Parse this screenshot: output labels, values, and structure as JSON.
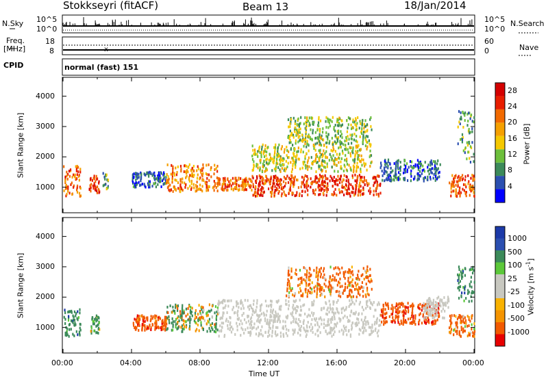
{
  "header": {
    "station": "Stokkseyri (fitACF)",
    "beam": "Beam 13",
    "date": "18/Jan/2014"
  },
  "top_panels": {
    "nsky_label": "N.Sky",
    "nsky_ticks": [
      "10^5",
      "10^0"
    ],
    "nsearch_label": "N.Search",
    "nsearch_ticks": [
      "10^5",
      "10^0"
    ],
    "freq_label": "Freq.",
    "freq_unit": "[MHz]",
    "freq_ticks": [
      "18",
      "8"
    ],
    "nave_label": "Nave",
    "nave_ticks": [
      "60",
      "0"
    ],
    "cpid_label": "CPID",
    "cpid_value": "normal (fast) 151"
  },
  "colors": {
    "power_scale": [
      "#0000ff",
      "#2b4fb0",
      "#3c8a5a",
      "#6dbf3c",
      "#f5c800",
      "#f5a000",
      "#f26a00",
      "#e81e00",
      "#d40000"
    ],
    "velocity_scale": [
      "#e80000",
      "#f25a00",
      "#f59400",
      "#f9b200",
      "#c8c8c0",
      "#c8c8c0",
      "#5cc83a",
      "#3c8a5a",
      "#2b4fb0",
      "#1c3aa8"
    ],
    "ground_scatter": "#c8c8c0"
  },
  "chart_data": [
    {
      "type": "heatmap",
      "title": "",
      "xlabel": "Time UT",
      "ylabel": "Slant Range [km]",
      "x_ticks": [
        "00:00",
        "04:00",
        "08:00",
        "12:00",
        "16:00",
        "20:00",
        "00:00"
      ],
      "xlim_hours": [
        0,
        24
      ],
      "y_ticks": [
        1000,
        2000,
        3000,
        4000
      ],
      "ylim": [
        180,
        4600
      ],
      "colorbar": {
        "label": "Power [dB]",
        "ticks": [
          4,
          8,
          12,
          16,
          20,
          24,
          28
        ],
        "range": [
          0,
          30
        ]
      },
      "scatter_regions": [
        {
          "t0": 0.0,
          "t1": 1.0,
          "r0": 700,
          "r1": 1700,
          "level": 22
        },
        {
          "t0": 1.5,
          "t1": 2.1,
          "r0": 800,
          "r1": 1400,
          "level": 24
        },
        {
          "t0": 2.3,
          "t1": 2.6,
          "r0": 900,
          "r1": 1600,
          "level": 10
        },
        {
          "t0": 4.0,
          "t1": 6.0,
          "r0": 1000,
          "r1": 1500,
          "level": 6
        },
        {
          "t0": 6.0,
          "t1": 9.0,
          "r0": 850,
          "r1": 1750,
          "level": 20
        },
        {
          "t0": 9.0,
          "t1": 11.0,
          "r0": 900,
          "r1": 1300,
          "level": 22
        },
        {
          "t0": 11.0,
          "t1": 18.5,
          "r0": 700,
          "r1": 1400,
          "level": 24
        },
        {
          "t0": 11.0,
          "t1": 18.0,
          "r0": 1500,
          "r1": 2400,
          "level": 14
        },
        {
          "t0": 13.0,
          "t1": 18.0,
          "r0": 2400,
          "r1": 3300,
          "level": 12
        },
        {
          "t0": 18.5,
          "t1": 22.0,
          "r0": 1200,
          "r1": 1900,
          "level": 6
        },
        {
          "t0": 22.5,
          "t1": 24.0,
          "r0": 700,
          "r1": 1400,
          "level": 22
        },
        {
          "t0": 23.0,
          "t1": 24.0,
          "r0": 1800,
          "r1": 3500,
          "level": 10
        }
      ]
    },
    {
      "type": "heatmap",
      "title": "",
      "xlabel": "Time UT",
      "ylabel": "Slant Range [km]",
      "x_ticks": [
        "00:00",
        "04:00",
        "08:00",
        "12:00",
        "16:00",
        "20:00",
        "00:00"
      ],
      "xlim_hours": [
        0,
        24
      ],
      "y_ticks": [
        1000,
        2000,
        3000,
        4000
      ],
      "ylim": [
        180,
        4600
      ],
      "colorbar": {
        "label": "Velocity [m s",
        "label_superscript": "-1",
        "label_close": "]",
        "ticks": [
          1000,
          500,
          100,
          25,
          -25,
          -100,
          -500,
          -1000
        ]
      },
      "scatter_regions": [
        {
          "t0": 0.0,
          "t1": 1.0,
          "r0": 700,
          "r1": 1600,
          "velocity": 300
        },
        {
          "t0": 1.5,
          "t1": 2.1,
          "r0": 800,
          "r1": 1400,
          "velocity": 200
        },
        {
          "t0": 4.0,
          "t1": 6.0,
          "r0": 900,
          "r1": 1400,
          "velocity": -300
        },
        {
          "t0": 6.0,
          "t1": 9.0,
          "r0": 850,
          "r1": 1750,
          "velocity": 100
        },
        {
          "t0": 9.0,
          "t1": 18.5,
          "r0": 700,
          "r1": 1900,
          "velocity": 0,
          "ground": true
        },
        {
          "t0": 13.0,
          "t1": 18.0,
          "r0": 2000,
          "r1": 3000,
          "velocity": -200
        },
        {
          "t0": 18.5,
          "t1": 22.0,
          "r0": 1100,
          "r1": 1800,
          "velocity": -400
        },
        {
          "t0": 21.0,
          "t1": 22.5,
          "r0": 1300,
          "r1": 2000,
          "velocity": 0,
          "ground": true
        },
        {
          "t0": 22.5,
          "t1": 24.0,
          "r0": 700,
          "r1": 1400,
          "velocity": -200
        },
        {
          "t0": 23.0,
          "t1": 24.0,
          "r0": 1800,
          "r1": 3000,
          "velocity": 300
        }
      ]
    }
  ]
}
